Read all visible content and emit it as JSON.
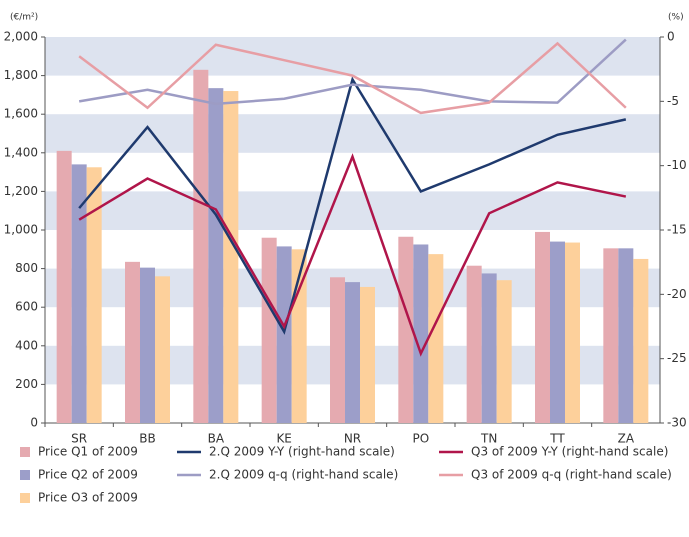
{
  "chart_data": {
    "type": "bar",
    "y_unit": "(€/m²)",
    "y2_unit": "(%)",
    "categories": [
      "SR",
      "BB",
      "BA",
      "KE",
      "NR",
      "PO",
      "TN",
      "TT",
      "ZA"
    ],
    "series": [
      {
        "name": "Price Q1 of 2009",
        "type": "bar",
        "color": "#e5aab0",
        "values": [
          1410,
          835,
          1830,
          960,
          755,
          965,
          815,
          990,
          905
        ]
      },
      {
        "name": "Price Q2 of 2009",
        "type": "bar",
        "color": "#9c9ec9",
        "values": [
          1340,
          805,
          1735,
          915,
          730,
          925,
          775,
          940,
          905
        ]
      },
      {
        "name": "Price O3 of 2009",
        "type": "bar",
        "color": "#fdd09b",
        "values": [
          1325,
          760,
          1720,
          900,
          705,
          875,
          740,
          935,
          850
        ]
      },
      {
        "name": "2.Q 2009 Y-Y (right-hand scale)",
        "type": "line",
        "axis": "y2",
        "color": "#1f3a6e",
        "values": [
          -13.3,
          -7.0,
          -13.8,
          -22.9,
          -3.3,
          -12.0,
          -9.9,
          -7.6,
          -6.4
        ]
      },
      {
        "name": "2.Q 2009 q-q (right-hand scale)",
        "type": "line",
        "axis": "y2",
        "color": "#9d9cc4",
        "values": [
          -5.0,
          -4.1,
          -5.2,
          -4.8,
          -3.7,
          -4.1,
          -5.0,
          -5.1,
          -0.2
        ]
      },
      {
        "name": "Q3 of 2009 Y-Y (right-hand scale)",
        "type": "line",
        "axis": "y2",
        "color": "#b0154a",
        "values": [
          -14.2,
          -11.0,
          -13.4,
          -22.5,
          -9.3,
          -24.6,
          -13.7,
          -11.3,
          -12.4
        ]
      },
      {
        "name": "Q3 of 2009 q-q (right-hand scale)",
        "type": "line",
        "axis": "y2",
        "color": "#e79ea4",
        "values": [
          -1.5,
          -5.5,
          -0.6,
          -1.8,
          -3.0,
          -5.9,
          -5.1,
          -0.5,
          -5.5
        ]
      }
    ],
    "ylim": [
      0,
      2000
    ],
    "yticks": [
      0,
      200,
      400,
      600,
      800,
      {
        "value": 1000,
        "label": "1,000"
      },
      {
        "value": 1200,
        "label": "1,200"
      },
      {
        "value": 1400,
        "label": "1,400"
      },
      {
        "value": 1600,
        "label": "1,600"
      },
      {
        "value": 1800,
        "label": "1,800"
      },
      {
        "value": 2000,
        "label": "2,000"
      }
    ],
    "y2lim": [
      -30,
      0
    ],
    "y2ticks": [
      0,
      -5,
      -10,
      -15,
      -20,
      -25,
      -30
    ],
    "grid": "bands",
    "band_color": "#dde3ef"
  }
}
